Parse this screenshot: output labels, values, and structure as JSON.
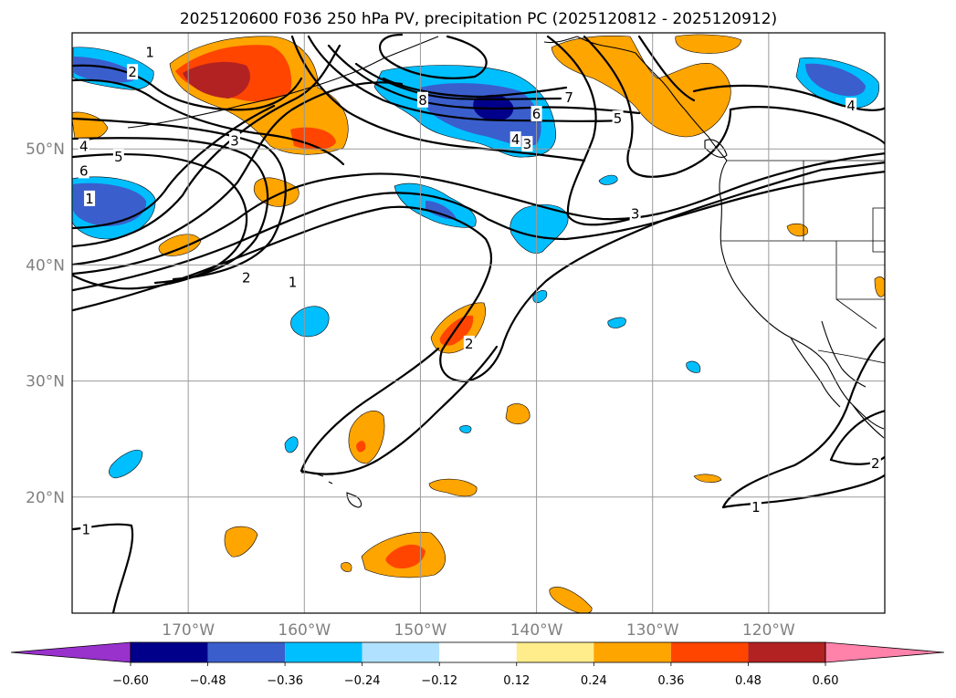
{
  "title": "2025120600 F036 250 hPa PV, precipitation PC (2025120812 - 2025120912)",
  "map": {
    "lon_range": [
      -180,
      -110
    ],
    "lat_range": [
      10,
      60
    ],
    "lat_ticks": [
      {
        "value": 20,
        "label": "20°N"
      },
      {
        "value": 30,
        "label": "30°N"
      },
      {
        "value": 40,
        "label": "40°N"
      },
      {
        "value": 50,
        "label": "50°N"
      }
    ],
    "lon_ticks": [
      {
        "value": -170,
        "label": "170°W"
      },
      {
        "value": -160,
        "label": "160°W"
      },
      {
        "value": -150,
        "label": "150°W"
      },
      {
        "value": -140,
        "label": "140°W"
      },
      {
        "value": -130,
        "label": "130°W"
      },
      {
        "value": -120,
        "label": "120°W"
      }
    ]
  },
  "colorbar": {
    "levels": [
      "-0.60",
      "-0.48",
      "-0.36",
      "-0.24",
      "-0.12",
      "0.12",
      "0.24",
      "0.36",
      "0.48",
      "0.60"
    ],
    "colors": [
      "#9932cc",
      "#00008b",
      "#3a5fcd",
      "#00bfff",
      "#b0e2ff",
      "#ffffff",
      "#ffec8b",
      "#ffa500",
      "#ff4500",
      "#b22222",
      "#ff82ab"
    ]
  },
  "contour_labels": [
    {
      "text": "1",
      "lon": -173.3,
      "lat": 58.3
    },
    {
      "text": "2",
      "lon": -174.8,
      "lat": 56.6
    },
    {
      "text": "3",
      "lon": -166.0,
      "lat": 50.7
    },
    {
      "text": "4",
      "lon": -179.0,
      "lat": 50.2
    },
    {
      "text": "5",
      "lon": -176.0,
      "lat": 49.3
    },
    {
      "text": "6",
      "lon": -179.0,
      "lat": 48.1
    },
    {
      "text": "1",
      "lon": -178.5,
      "lat": 45.7
    },
    {
      "text": "2",
      "lon": -165.0,
      "lat": 38.9
    },
    {
      "text": "1",
      "lon": -161.0,
      "lat": 38.5
    },
    {
      "text": "8",
      "lon": -149.8,
      "lat": 54.2
    },
    {
      "text": "7",
      "lon": -137.2,
      "lat": 54.4
    },
    {
      "text": "6",
      "lon": -140.0,
      "lat": 53.0
    },
    {
      "text": "5",
      "lon": -133.0,
      "lat": 52.6
    },
    {
      "text": "4",
      "lon": -141.8,
      "lat": 50.8
    },
    {
      "text": "3",
      "lon": -140.8,
      "lat": 50.4
    },
    {
      "text": "3",
      "lon": -131.5,
      "lat": 44.4
    },
    {
      "text": "4",
      "lon": -112.9,
      "lat": 53.7
    },
    {
      "text": "2",
      "lon": -145.8,
      "lat": 33.2
    },
    {
      "text": "2",
      "lon": -110.8,
      "lat": 22.9
    },
    {
      "text": "1",
      "lon": -178.8,
      "lat": 17.2
    },
    {
      "text": "1",
      "lon": -121.1,
      "lat": 19.1
    }
  ]
}
